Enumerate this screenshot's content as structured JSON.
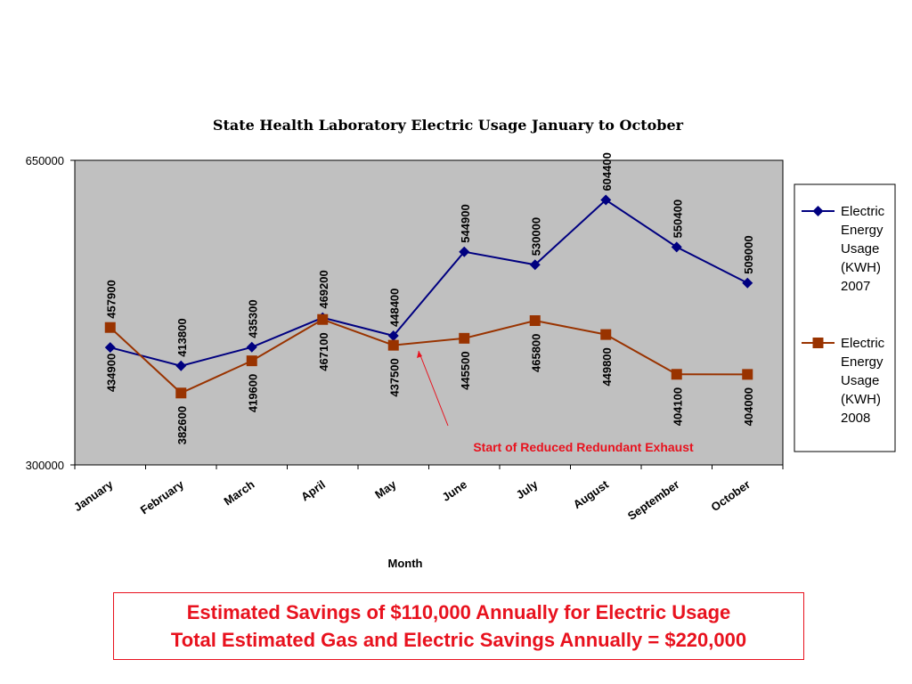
{
  "chart_data": {
    "type": "line",
    "title": "State Health Laboratory Electric Usage January to October",
    "xlabel": "Month",
    "ylabel": "",
    "categories": [
      "January",
      "February",
      "March",
      "April",
      "May",
      "June",
      "July",
      "August",
      "September",
      "October"
    ],
    "ylim": [
      300000,
      650000
    ],
    "yticks": [
      "650000",
      "300000"
    ],
    "grid": false,
    "legend_position": "right",
    "series": [
      {
        "name": "Electric Energy Usage (KWH) 2007",
        "color": "#000080",
        "marker": "diamond",
        "values": [
          434900,
          413800,
          435300,
          469200,
          448400,
          544900,
          530000,
          604400,
          550400,
          509000
        ],
        "labels": [
          "434900",
          "413800",
          "435300",
          "469200",
          "448400",
          "544900",
          "530000",
          "604400",
          "550400",
          "509000"
        ]
      },
      {
        "name": "Electric Energy Usage (KWH) 2008",
        "color": "#993300",
        "marker": "square",
        "values": [
          457900,
          382600,
          419600,
          467100,
          437500,
          445500,
          465800,
          449800,
          404100,
          404000
        ],
        "labels": [
          "457900",
          "382600",
          "419600",
          "467100",
          "437500",
          "445500",
          "465800",
          "449800",
          "404100",
          "404000"
        ]
      }
    ],
    "annotation": "Start of Reduced Redundant Exhaust",
    "plot_background": "#c0c0c0"
  },
  "savings": {
    "line1": "Estimated Savings of $110,000 Annually for Electric Usage",
    "line2": "Total Estimated Gas and Electric Savings Annually = $220,000"
  }
}
